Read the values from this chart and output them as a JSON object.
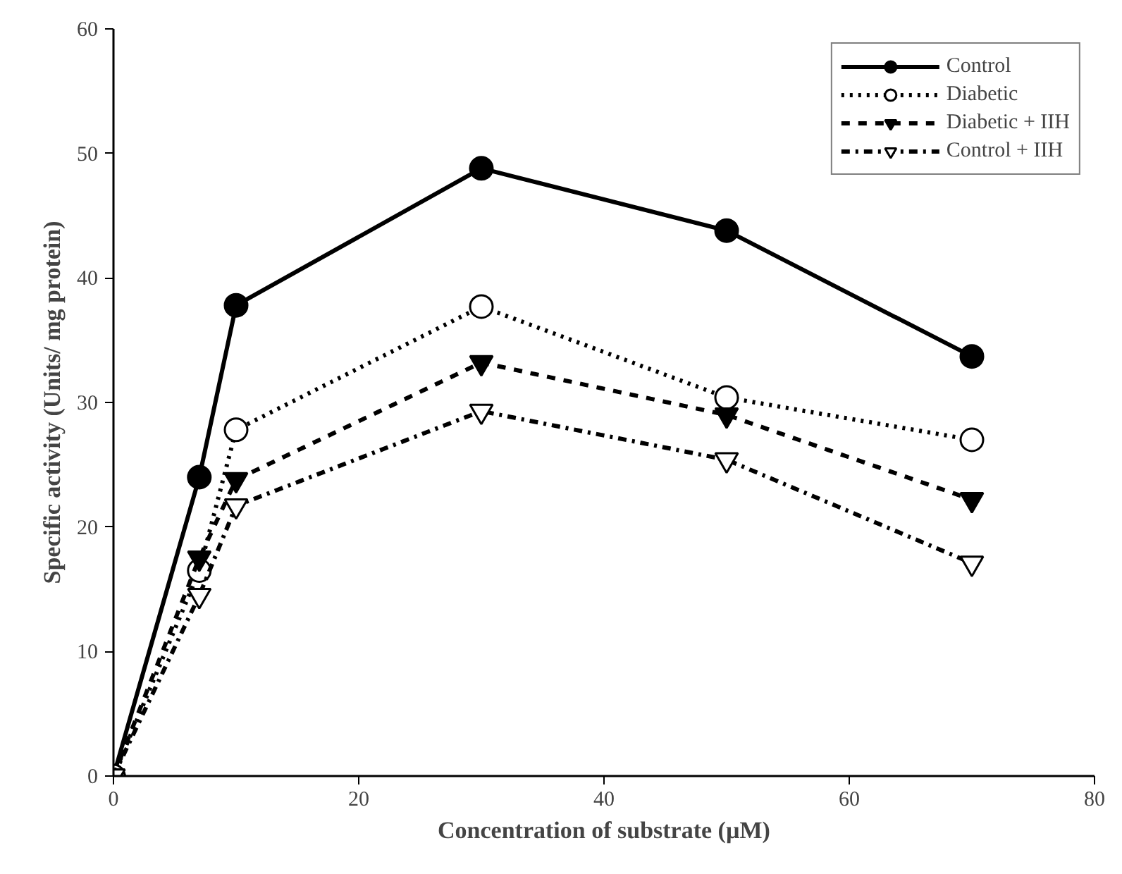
{
  "chart_data": {
    "type": "line",
    "xlabel": "Concentration of substrate (µM)",
    "ylabel": "Specific activity (Units/ mg protein)",
    "x": [
      0,
      7,
      10,
      30,
      50,
      70
    ],
    "series": [
      {
        "name": "Control",
        "color": "#000000",
        "values": [
          0,
          24,
          37.8,
          48.8,
          43.8,
          33.7
        ],
        "line_style": "solid",
        "marker": "circle"
      },
      {
        "name": "Diabetic",
        "color": "#000000",
        "values": [
          0,
          16.5,
          27.8,
          37.7,
          30.4,
          27
        ],
        "line_style": "dotted",
        "marker": "circle"
      },
      {
        "name": "Diabetic + IIH",
        "color": "#000000",
        "values": [
          0,
          17.5,
          23.8,
          33.2,
          29,
          22.2
        ],
        "line_style": "dashed",
        "marker": "triangle"
      },
      {
        "name": "Control + IIH",
        "color": "#000000",
        "values": [
          0,
          14.5,
          21.7,
          29.3,
          25.4,
          17.1
        ],
        "line_style": "dashdot",
        "marker": "triangle"
      }
    ],
    "xlim": [
      0,
      80
    ],
    "xticks": [
      0,
      20,
      40,
      60,
      80
    ],
    "ylim": [
      0,
      60
    ],
    "yticks": [
      0,
      10,
      20,
      30,
      40,
      50,
      60
    ],
    "grid": false,
    "legend": "top right"
  }
}
